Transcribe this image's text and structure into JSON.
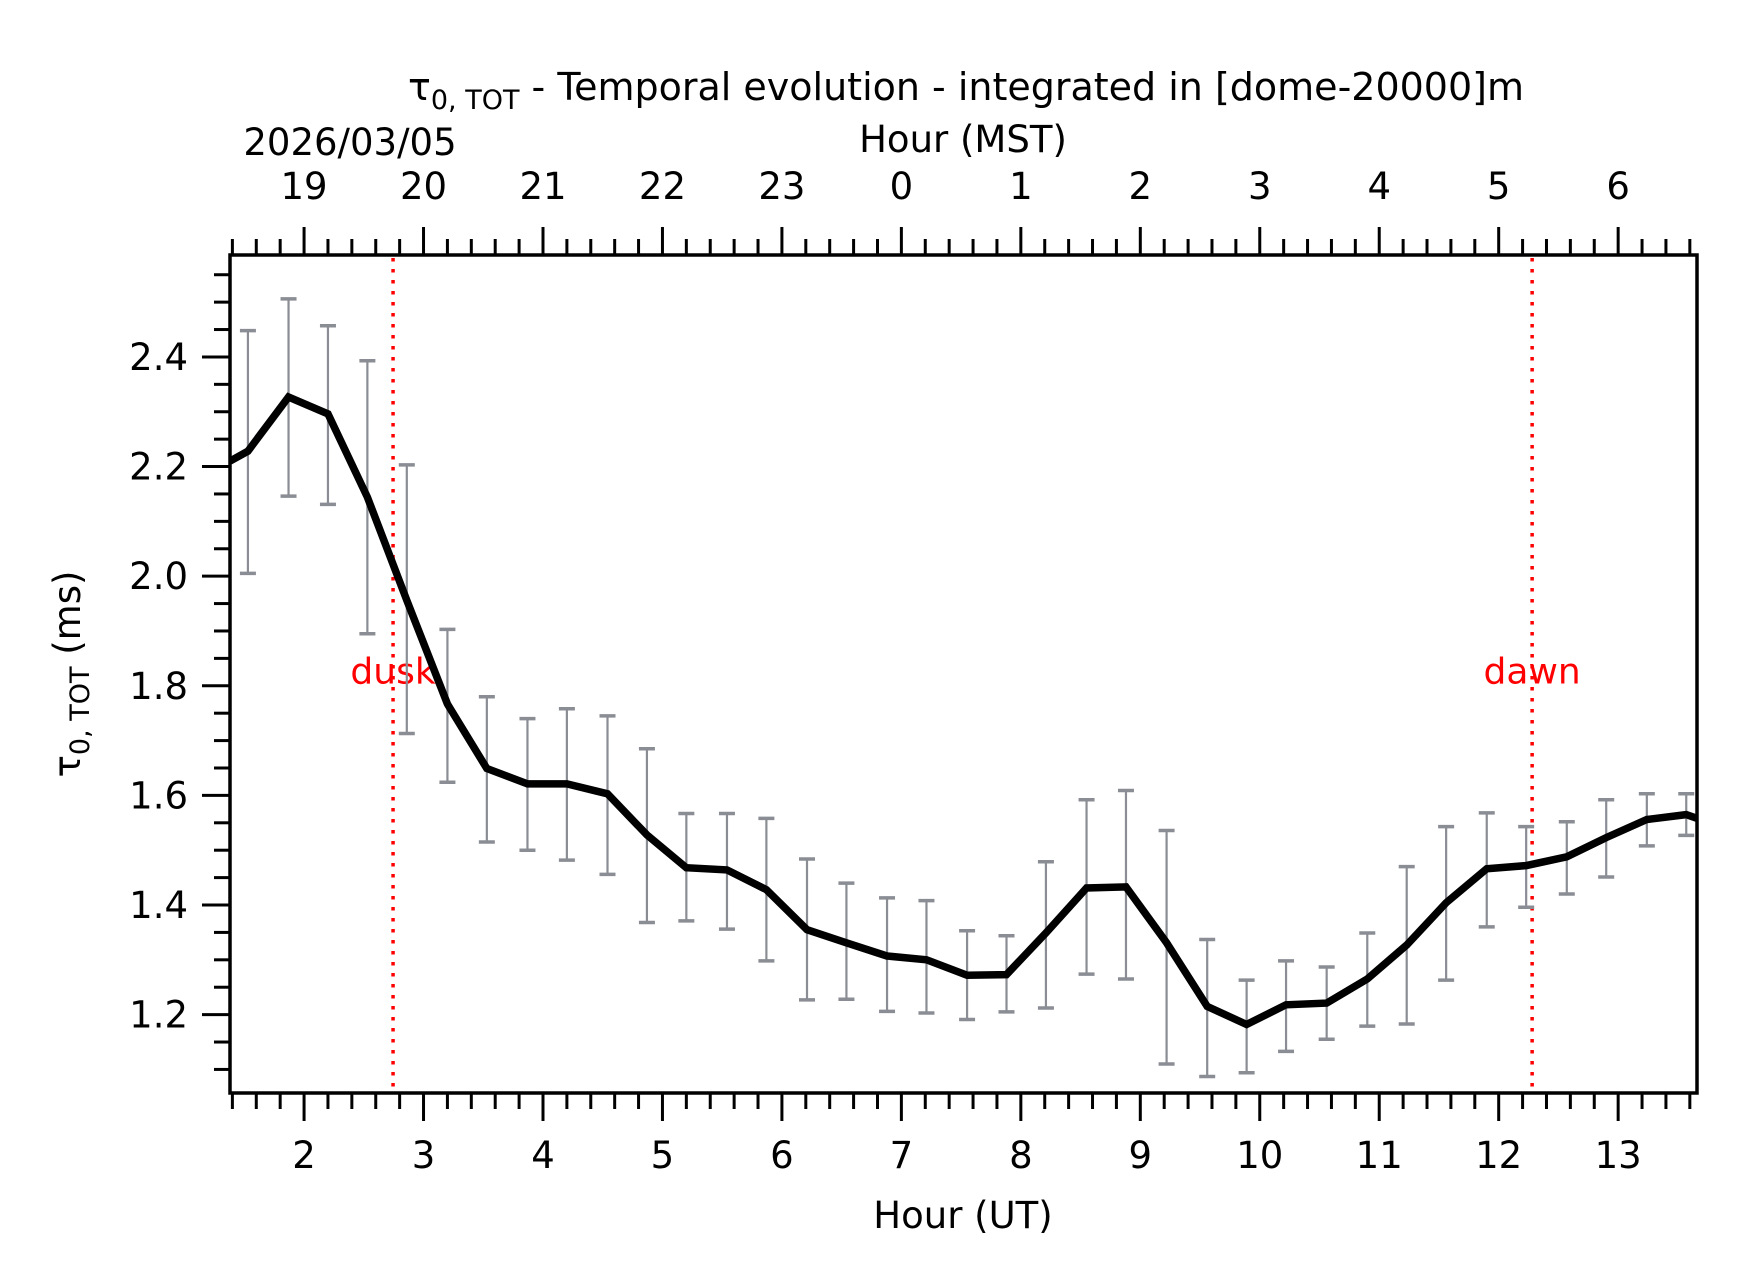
{
  "chart_data": {
    "type": "line",
    "title": {
      "symbol": "τ",
      "subscript": "0, TOT",
      "text": " - Temporal evolution - integrated in [dome-20000]m"
    },
    "date_label": "2026/03/05",
    "xlabel": "Hour (UT)",
    "xlabel_top": "Hour (MST)",
    "ylabel": {
      "symbol": "τ",
      "subscript": "0, TOT",
      "text": " (ms)"
    },
    "xlim": [
      1.38,
      13.66
    ],
    "ylim": [
      1.057,
      2.586
    ],
    "grid": false,
    "x_ticks": [
      2,
      3,
      4,
      5,
      6,
      7,
      8,
      9,
      10,
      11,
      12,
      13
    ],
    "x_tick_labels": [
      "2",
      "3",
      "4",
      "5",
      "6",
      "7",
      "8",
      "9",
      "10",
      "11",
      "12",
      "13"
    ],
    "x_minor_step": 0.2,
    "x_top_ticks_ut": [
      2,
      3,
      4,
      5,
      6,
      7,
      8,
      9,
      10,
      11,
      12,
      13
    ],
    "x_top_tick_labels": [
      "19",
      "20",
      "21",
      "22",
      "23",
      "0",
      "1",
      "2",
      "3",
      "4",
      "5",
      "6"
    ],
    "y_ticks": [
      1.2,
      1.4,
      1.6,
      1.8,
      2.0,
      2.2,
      2.4
    ],
    "y_tick_labels": [
      "1.2",
      "1.4",
      "1.6",
      "1.8",
      "2.0",
      "2.2",
      "2.4"
    ],
    "y_minor_step": 0.05,
    "series": [
      {
        "name": "tau0_tot",
        "color": "#000000",
        "x": [
          1.53,
          1.87,
          2.2,
          2.53,
          2.86,
          3.2,
          3.53,
          3.87,
          4.2,
          4.54,
          4.87,
          5.2,
          5.54,
          5.87,
          6.21,
          6.54,
          6.88,
          7.21,
          7.55,
          7.88,
          8.21,
          8.55,
          8.88,
          9.22,
          9.56,
          9.89,
          10.22,
          10.56,
          10.9,
          11.23,
          11.56,
          11.9,
          12.23,
          12.57,
          12.9,
          13.24,
          13.57
        ],
        "y": [
          2.228,
          2.327,
          2.296,
          2.144,
          1.956,
          1.767,
          1.649,
          1.621,
          1.621,
          1.603,
          1.528,
          1.468,
          1.464,
          1.428,
          1.355,
          1.331,
          1.307,
          1.3,
          1.272,
          1.273,
          1.349,
          1.431,
          1.433,
          1.331,
          1.215,
          1.182,
          1.218,
          1.221,
          1.265,
          1.327,
          1.404,
          1.466,
          1.472,
          1.488,
          1.523,
          1.556,
          1.565
        ],
        "y_upper": [
          2.448,
          2.506,
          2.457,
          2.393,
          2.203,
          1.903,
          1.78,
          1.74,
          1.758,
          1.745,
          1.685,
          1.567,
          1.567,
          1.558,
          1.484,
          1.44,
          1.413,
          1.408,
          1.353,
          1.344,
          1.479,
          1.592,
          1.609,
          1.536,
          1.337,
          1.263,
          1.298,
          1.287,
          1.349,
          1.47,
          1.543,
          1.568,
          1.543,
          1.552,
          1.592,
          1.603,
          1.603
        ],
        "y_lower": [
          2.005,
          2.146,
          2.131,
          1.895,
          1.713,
          1.624,
          1.515,
          1.5,
          1.482,
          1.456,
          1.368,
          1.371,
          1.356,
          1.298,
          1.227,
          1.228,
          1.206,
          1.203,
          1.191,
          1.205,
          1.212,
          1.274,
          1.265,
          1.11,
          1.087,
          1.094,
          1.133,
          1.155,
          1.179,
          1.183,
          1.263,
          1.36,
          1.396,
          1.42,
          1.451,
          1.508,
          1.527
        ],
        "edge_values": {
          "at_xmin": 2.21,
          "at_xmax": 1.558
        }
      }
    ],
    "errorbar_color": "#8a8d94",
    "annotations": [
      {
        "label": "dusk",
        "x": 2.745,
        "y_text": 1.81,
        "color": "#ff0000",
        "style": "dotted-vertical-line"
      },
      {
        "label": "dawn",
        "x": 12.28,
        "y_text": 1.81,
        "color": "#ff0000",
        "style": "dotted-vertical-line"
      }
    ]
  }
}
